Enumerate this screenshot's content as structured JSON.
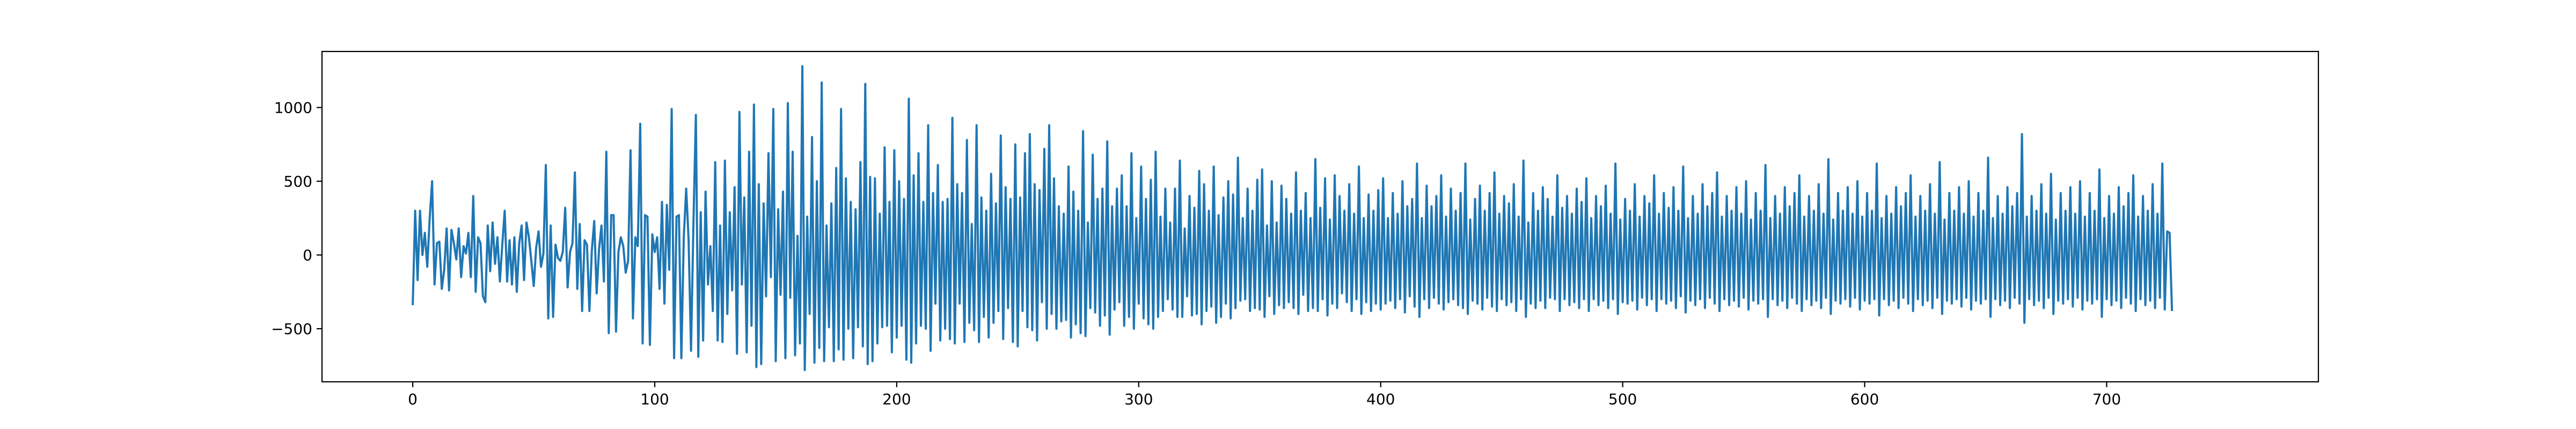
{
  "chart_data": {
    "type": "line",
    "title": "",
    "xlabel": "",
    "ylabel": "",
    "xlim": [
      -37.5,
      787.5
    ],
    "ylim": [
      -860,
      1380
    ],
    "x_ticks": [
      0,
      100,
      200,
      300,
      400,
      500,
      600,
      700
    ],
    "y_ticks": [
      -500,
      0,
      500,
      1000
    ],
    "x_tick_labels": [
      "0",
      "100",
      "200",
      "300",
      "400",
      "500",
      "600",
      "700"
    ],
    "y_tick_labels": [
      "−500",
      "0",
      "500",
      "1000"
    ],
    "grid": false,
    "legend": "none",
    "series": [
      {
        "color": "#1f77b4",
        "x_start": 0,
        "x_step": 1,
        "values": [
          -340,
          300,
          -170,
          300,
          0,
          150,
          -80,
          250,
          500,
          -200,
          80,
          90,
          -230,
          -100,
          180,
          -240,
          170,
          80,
          -30,
          180,
          -150,
          60,
          10,
          150,
          -150,
          400,
          -250,
          120,
          80,
          -280,
          -320,
          200,
          -110,
          220,
          -60,
          120,
          -180,
          70,
          300,
          -180,
          100,
          -200,
          120,
          -250,
          80,
          200,
          -170,
          220,
          120,
          -40,
          -210,
          50,
          160,
          -80,
          10,
          610,
          -430,
          200,
          -420,
          70,
          -20,
          -40,
          20,
          320,
          -220,
          20,
          80,
          560,
          -230,
          210,
          -380,
          100,
          70,
          -380,
          30,
          230,
          -260,
          40,
          200,
          -180,
          700,
          -530,
          270,
          270,
          -520,
          20,
          120,
          60,
          -120,
          -40,
          710,
          -430,
          120,
          60,
          890,
          -600,
          270,
          260,
          -610,
          140,
          20,
          120,
          -230,
          360,
          -330,
          340,
          -100,
          990,
          -700,
          260,
          270,
          -700,
          120,
          450,
          100,
          -650,
          220,
          950,
          -690,
          290,
          -580,
          430,
          -200,
          60,
          -380,
          630,
          -580,
          200,
          -590,
          640,
          -400,
          290,
          -240,
          460,
          -670,
          970,
          -200,
          390,
          -660,
          700,
          -480,
          1020,
          -760,
          480,
          -740,
          350,
          -280,
          690,
          -150,
          990,
          -720,
          310,
          -270,
          430,
          -700,
          1030,
          -290,
          700,
          -680,
          130,
          -600,
          1280,
          -780,
          260,
          -400,
          800,
          -730,
          500,
          -630,
          1170,
          -720,
          200,
          -490,
          350,
          -720,
          590,
          -640,
          990,
          -710,
          520,
          -500,
          360,
          -700,
          310,
          -490,
          630,
          -620,
          1160,
          -740,
          530,
          -720,
          520,
          -600,
          280,
          -490,
          730,
          -480,
          360,
          -660,
          710,
          -560,
          500,
          -480,
          380,
          -710,
          1060,
          -730,
          540,
          -600,
          690,
          -480,
          360,
          -500,
          880,
          -650,
          420,
          -330,
          610,
          -580,
          360,
          -500,
          380,
          -570,
          930,
          -600,
          480,
          -330,
          420,
          -590,
          780,
          -460,
          210,
          -510,
          880,
          -590,
          390,
          -420,
          300,
          -560,
          550,
          -460,
          350,
          -380,
          810,
          -570,
          460,
          -360,
          380,
          -590,
          750,
          -620,
          390,
          -380,
          690,
          -490,
          820,
          -510,
          480,
          -580,
          440,
          -320,
          720,
          -500,
          880,
          -400,
          520,
          -500,
          330,
          -450,
          280,
          -440,
          600,
          -560,
          430,
          -470,
          300,
          -530,
          840,
          -550,
          220,
          -360,
          680,
          -390,
          380,
          -480,
          450,
          -410,
          770,
          -540,
          330,
          -370,
          450,
          -320,
          540,
          -480,
          330,
          -420,
          690,
          -500,
          250,
          -330,
          600,
          -430,
          380,
          -470,
          510,
          -500,
          700,
          -420,
          260,
          -380,
          450,
          -300,
          220,
          -370,
          450,
          -420,
          640,
          -420,
          180,
          -280,
          400,
          -410,
          320,
          -400,
          570,
          -470,
          480,
          -380,
          300,
          -350,
          600,
          -460,
          270,
          -420,
          390,
          -330,
          500,
          -430,
          410,
          -360,
          660,
          -310,
          250,
          -300,
          450,
          -380,
          300,
          -360,
          510,
          -370,
          580,
          -420,
          200,
          -280,
          500,
          -400,
          220,
          -340,
          470,
          -360,
          380,
          -320,
          280,
          -360,
          560,
          -400,
          300,
          -270,
          420,
          -380,
          250,
          -360,
          650,
          -380,
          320,
          -300,
          520,
          -410,
          240,
          -330,
          540,
          -360,
          400,
          -260,
          300,
          -320,
          480,
          -380,
          280,
          -300,
          600,
          -400,
          250,
          -320,
          410,
          -380,
          300,
          -330,
          440,
          -370,
          520,
          -330,
          250,
          -310,
          420,
          -360,
          280,
          -300,
          500,
          -390,
          330,
          -280,
          380,
          -350,
          620,
          -420,
          250,
          -300,
          470,
          -360,
          330,
          -290,
          400,
          -330,
          540,
          -370,
          260,
          -320,
          450,
          -300,
          300,
          -340,
          420,
          -360,
          620,
          -400,
          240,
          -310,
          380,
          -330,
          470,
          -370,
          300,
          -290,
          420,
          -350,
          560,
          -380,
          280,
          -300,
          400,
          -340,
          350,
          -320,
          480,
          -380,
          260,
          -300,
          640,
          -420,
          220,
          -330,
          420,
          -360,
          300,
          -310,
          460,
          -360,
          380,
          -290,
          260,
          -300,
          540,
          -380,
          320,
          -300,
          400,
          -340,
          280,
          -320,
          450,
          -360,
          360,
          -300,
          520,
          -380,
          250,
          -300,
          400,
          -340,
          330,
          -310,
          470,
          -360,
          280,
          -300,
          620,
          -400,
          240,
          -320,
          380,
          -330,
          300,
          -310,
          480,
          -370,
          260,
          -290,
          400,
          -340,
          350,
          -300,
          540,
          -380,
          280,
          -300,
          420,
          -330,
          320,
          -310,
          460,
          -360,
          300,
          -280,
          600,
          -390,
          250,
          -310,
          400,
          -340,
          280,
          -300,
          480,
          -360,
          330,
          -290,
          420,
          -330,
          560,
          -380,
          260,
          -300,
          400,
          -340,
          300,
          -310,
          460,
          -350,
          280,
          -290,
          500,
          -370,
          240,
          -310,
          420,
          -330,
          300,
          -300,
          610,
          -420,
          250,
          -300,
          400,
          -340,
          280,
          -310,
          460,
          -360,
          330,
          -290,
          420,
          -330,
          540,
          -380,
          260,
          -300,
          400,
          -340,
          300,
          -310,
          480,
          -360,
          280,
          -290,
          650,
          -400,
          240,
          -310,
          420,
          -330,
          300,
          -300,
          460,
          -350,
          280,
          -290,
          500,
          -370,
          260,
          -310,
          420,
          -330,
          300,
          -300,
          620,
          -410,
          250,
          -300,
          400,
          -340,
          280,
          -310,
          460,
          -360,
          330,
          -290,
          420,
          -330,
          540,
          -380,
          260,
          -300,
          400,
          -340,
          300,
          -310,
          480,
          -360,
          280,
          -290,
          630,
          -400,
          240,
          -310,
          420,
          -330,
          300,
          -300,
          460,
          -350,
          280,
          -290,
          500,
          -370,
          260,
          -310,
          420,
          -330,
          300,
          -300,
          660,
          -420,
          250,
          -300,
          400,
          -340,
          280,
          -310,
          460,
          -360,
          330,
          -290,
          420,
          -330,
          820,
          -460,
          260,
          -300,
          400,
          -340,
          300,
          -310,
          480,
          -360,
          280,
          -290,
          550,
          -400,
          240,
          -310,
          420,
          -330,
          300,
          -300,
          460,
          -350,
          280,
          -290,
          500,
          -370,
          260,
          -310,
          420,
          -330,
          300,
          -300,
          580,
          -420,
          250,
          -300,
          400,
          -340,
          280,
          -310,
          460,
          -360,
          330,
          -290,
          420,
          -330,
          540,
          -380,
          260,
          -300,
          400,
          -340,
          300,
          -310,
          480,
          -360,
          280,
          -290,
          620,
          -370,
          160,
          150,
          -380
        ]
      }
    ]
  }
}
